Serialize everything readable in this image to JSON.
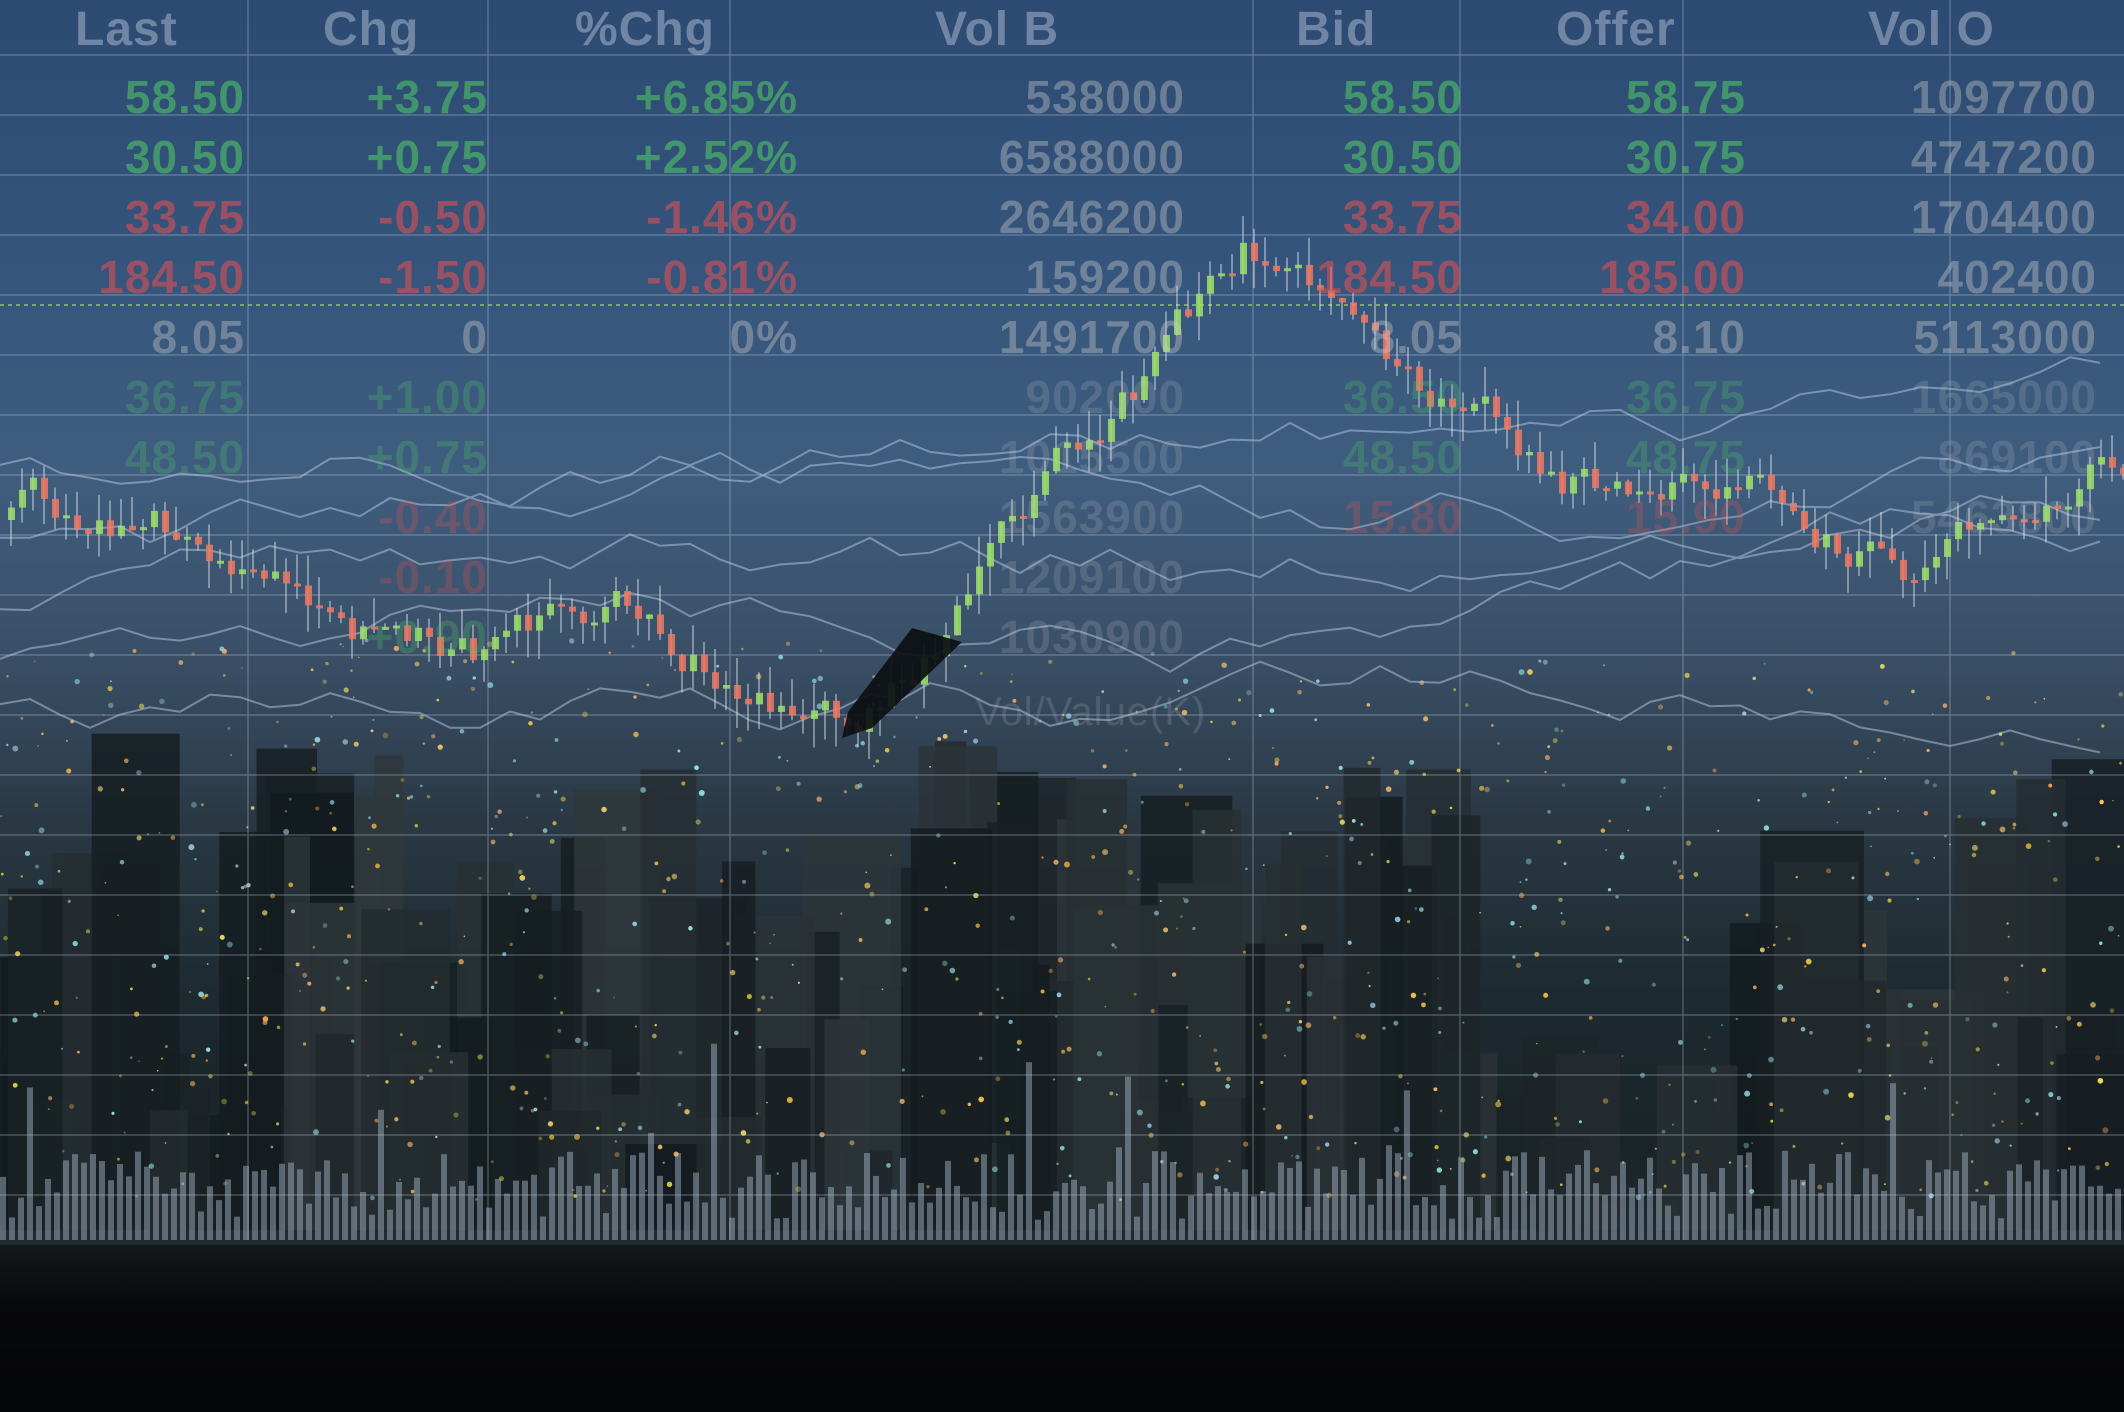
{
  "quote_board": {
    "headers": [
      "Last",
      "Chg",
      "%Chg",
      "Vol B",
      "Bid",
      "Offer",
      "Vol O"
    ],
    "rows": [
      {
        "last": "58.50",
        "chg": "+3.75",
        "pct": "+6.85%",
        "vol_b": "538000",
        "bid": "58.50",
        "offer": "58.75",
        "vol_o": "1097700",
        "dir": "up"
      },
      {
        "last": "30.50",
        "chg": "+0.75",
        "pct": "+2.52%",
        "vol_b": "6588000",
        "bid": "30.50",
        "offer": "30.75",
        "vol_o": "4747200",
        "dir": "up"
      },
      {
        "last": "33.75",
        "chg": "-0.50",
        "pct": "-1.46%",
        "vol_b": "2646200",
        "bid": "33.75",
        "offer": "34.00",
        "vol_o": "1704400",
        "dir": "down"
      },
      {
        "last": "184.50",
        "chg": "-1.50",
        "pct": "-0.81%",
        "vol_b": "159200",
        "bid": "184.50",
        "offer": "185.00",
        "vol_o": "402400",
        "dir": "down"
      },
      {
        "last": "8.05",
        "chg": "0",
        "pct": "0%",
        "vol_b": "1491700",
        "bid": "8.05",
        "offer": "8.10",
        "vol_o": "5113000",
        "dir": "none"
      },
      {
        "last": "36.75",
        "chg": "+1.00",
        "pct": "",
        "vol_b": "902000",
        "bid": "36.50",
        "offer": "36.75",
        "vol_o": "1665000",
        "dir": "up"
      },
      {
        "last": "48.50",
        "chg": "+0.75",
        "pct": "",
        "vol_b": "1015500",
        "bid": "48.50",
        "offer": "48.75",
        "vol_o": "869100",
        "dir": "up"
      },
      {
        "last": "",
        "chg": "-0.40",
        "pct": "",
        "vol_b": "1563900",
        "bid": "15.80",
        "offer": "15.90",
        "vol_o": "5463800",
        "dir": "down"
      },
      {
        "last": "",
        "chg": "-0.10",
        "pct": "",
        "vol_b": "1209100",
        "bid": "",
        "offer": "",
        "vol_o": "",
        "dir": "down"
      },
      {
        "last": "",
        "chg": "+0.90",
        "pct": "",
        "vol_b": "1030900",
        "bid": "",
        "offer": "",
        "vol_o": "",
        "dir": "up"
      }
    ],
    "overlay_label": "Vol/Value(K)"
  },
  "colors": {
    "up": "#50cd64",
    "down": "#eb5050",
    "neutral": "#c8c8c8",
    "candle_up": "#9fe06a",
    "candle_down": "#f07860",
    "grid": "#c8d6ea"
  }
}
